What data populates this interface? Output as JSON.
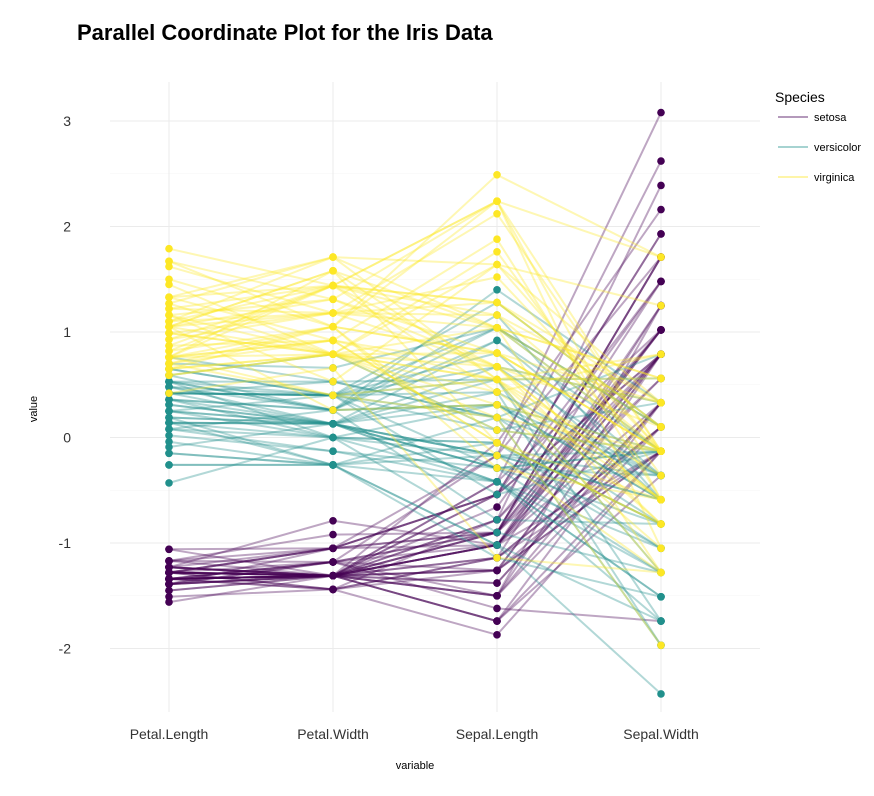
{
  "chart_data": {
    "type": "line",
    "title": "Parallel Coordinate Plot for the Iris Data",
    "xlabel": "variable",
    "ylabel": "value",
    "categories": [
      "Petal.Length",
      "Petal.Width",
      "Sepal.Length",
      "Sepal.Width"
    ],
    "ylim": [
      -2.7,
      3.3
    ],
    "yticks": [
      3,
      2,
      1,
      0,
      -1,
      -2
    ],
    "ytick_labels": [
      "3",
      "2",
      "1",
      "0",
      "-1",
      "-2"
    ],
    "grid": true,
    "legend": {
      "title": "Species",
      "position": "right",
      "entries": [
        "setosa",
        "versicolor",
        "virginica"
      ]
    },
    "series": [
      {
        "name": "setosa",
        "color": "#440154",
        "lines": [
          [
            -1.34,
            -1.31,
            -0.9,
            1.02
          ],
          [
            -1.34,
            -1.31,
            -1.14,
            -0.13
          ],
          [
            -1.39,
            -1.31,
            -1.38,
            0.33
          ],
          [
            -1.28,
            -1.31,
            -1.5,
            0.1
          ],
          [
            -1.34,
            -1.31,
            -1.02,
            1.25
          ],
          [
            -1.17,
            -1.05,
            -0.54,
            1.93
          ],
          [
            -1.34,
            -1.18,
            -1.5,
            0.79
          ],
          [
            -1.28,
            -1.31,
            -1.02,
            0.79
          ],
          [
            -1.34,
            -1.31,
            -1.74,
            -0.36
          ],
          [
            -1.28,
            -1.44,
            -1.14,
            0.1
          ],
          [
            -1.28,
            -1.31,
            -0.54,
            1.48
          ],
          [
            -1.23,
            -1.31,
            -1.26,
            0.79
          ],
          [
            -1.34,
            -1.44,
            -1.26,
            -0.13
          ],
          [
            -1.51,
            -1.44,
            -1.87,
            -0.13
          ],
          [
            -1.45,
            -1.31,
            -0.05,
            2.16
          ],
          [
            -1.28,
            -1.05,
            -0.17,
            3.08
          ],
          [
            -1.39,
            -1.05,
            -0.54,
            1.93
          ],
          [
            -1.34,
            -1.18,
            -0.9,
            1.02
          ],
          [
            -1.17,
            -1.18,
            -0.17,
            1.71
          ],
          [
            -1.28,
            -1.18,
            -0.9,
            1.71
          ],
          [
            -1.17,
            -1.31,
            -0.54,
            0.79
          ],
          [
            -1.28,
            -1.05,
            -0.9,
            1.48
          ],
          [
            -1.56,
            -1.31,
            -1.5,
            1.25
          ],
          [
            -1.17,
            -0.92,
            -0.9,
            0.56
          ],
          [
            -1.06,
            -1.31,
            -1.26,
            0.79
          ],
          [
            -1.23,
            -1.31,
            -1.02,
            -0.13
          ],
          [
            -1.23,
            -1.05,
            -1.02,
            0.79
          ],
          [
            -1.28,
            -1.31,
            -0.78,
            1.02
          ],
          [
            -1.34,
            -1.31,
            -0.78,
            0.79
          ],
          [
            -1.23,
            -1.31,
            -1.38,
            0.33
          ],
          [
            -1.23,
            -1.31,
            -1.26,
            0.1
          ],
          [
            -1.28,
            -1.05,
            -0.54,
            0.79
          ],
          [
            -1.28,
            -1.44,
            -0.78,
            2.39
          ],
          [
            -1.34,
            -1.31,
            -0.42,
            2.62
          ],
          [
            -1.28,
            -1.31,
            -1.14,
            0.1
          ],
          [
            -1.45,
            -1.31,
            -1.02,
            0.33
          ],
          [
            -1.39,
            -1.31,
            -0.42,
            1.02
          ],
          [
            -1.34,
            -1.44,
            -1.14,
            1.25
          ],
          [
            -1.39,
            -1.31,
            -1.74,
            -0.13
          ],
          [
            -1.28,
            -1.31,
            -0.9,
            0.79
          ],
          [
            -1.39,
            -1.18,
            -1.02,
            1.02
          ],
          [
            -1.39,
            -1.18,
            -1.62,
            -1.74
          ],
          [
            -1.39,
            -1.31,
            -1.74,
            0.33
          ],
          [
            -1.23,
            -0.79,
            -1.02,
            1.02
          ],
          [
            -1.06,
            -1.05,
            -0.9,
            1.71
          ],
          [
            -1.34,
            -1.18,
            -1.26,
            -0.13
          ],
          [
            -1.23,
            -1.31,
            -0.9,
            1.71
          ],
          [
            -1.34,
            -1.31,
            -1.5,
            0.33
          ],
          [
            -1.28,
            -1.31,
            -0.66,
            1.48
          ],
          [
            -1.34,
            -1.31,
            -1.02,
            0.56
          ]
        ]
      },
      {
        "name": "versicolor",
        "color": "#21908C",
        "lines": [
          [
            0.53,
            0.26,
            1.4,
            0.33
          ],
          [
            0.42,
            0.4,
            0.67,
            0.33
          ],
          [
            0.65,
            0.4,
            1.28,
            0.1
          ],
          [
            0.14,
            0.13,
            -0.42,
            -1.74
          ],
          [
            0.48,
            0.4,
            0.8,
            -0.59
          ],
          [
            0.42,
            0.13,
            -0.17,
            -0.59
          ],
          [
            0.53,
            0.53,
            0.55,
            0.56
          ],
          [
            -0.26,
            -0.26,
            -1.14,
            -1.51
          ],
          [
            0.48,
            0.13,
            0.92,
            -0.36
          ],
          [
            0.08,
            0.26,
            -0.78,
            -0.82
          ],
          [
            -0.15,
            -0.26,
            -1.02,
            -2.43
          ],
          [
            0.25,
            0.4,
            0.07,
            -0.13
          ],
          [
            0.14,
            -0.26,
            0.19,
            -1.97
          ],
          [
            0.53,
            0.26,
            0.31,
            -0.36
          ],
          [
            -0.09,
            0.13,
            -0.29,
            -0.36
          ],
          [
            0.36,
            0.26,
            1.04,
            0.1
          ],
          [
            0.42,
            0.4,
            -0.29,
            -0.13
          ],
          [
            0.19,
            -0.26,
            -0.05,
            -0.82
          ],
          [
            0.42,
            0.4,
            0.43,
            -1.97
          ],
          [
            0.08,
            -0.13,
            -0.29,
            -1.28
          ],
          [
            0.59,
            0.79,
            0.07,
            0.33
          ],
          [
            0.14,
            0.13,
            0.31,
            -0.59
          ],
          [
            0.65,
            0.4,
            0.55,
            -1.28
          ],
          [
            0.53,
            0.0,
            0.31,
            -0.59
          ],
          [
            0.31,
            0.13,
            0.67,
            -0.36
          ],
          [
            0.36,
            0.26,
            0.92,
            -0.13
          ],
          [
            0.59,
            0.26,
            1.16,
            -0.59
          ],
          [
            0.7,
            0.66,
            1.04,
            -0.13
          ],
          [
            0.42,
            0.4,
            0.19,
            -0.36
          ],
          [
            -0.15,
            -0.26,
            -0.17,
            -1.05
          ],
          [
            0.02,
            -0.13,
            -0.42,
            -1.51
          ],
          [
            -0.04,
            -0.26,
            -0.42,
            -1.51
          ],
          [
            0.08,
            0.0,
            -0.05,
            -0.82
          ],
          [
            0.76,
            0.53,
            0.19,
            -0.82
          ],
          [
            0.42,
            0.4,
            -0.54,
            -0.13
          ],
          [
            0.42,
            0.53,
            0.19,
            0.79
          ],
          [
            0.53,
            0.4,
            1.04,
            0.1
          ],
          [
            0.36,
            0.13,
            0.55,
            -1.74
          ],
          [
            0.19,
            0.13,
            -0.29,
            -0.13
          ],
          [
            0.14,
            0.13,
            -0.42,
            -1.28
          ],
          [
            0.36,
            0.0,
            -0.42,
            -1.05
          ],
          [
            0.48,
            0.26,
            0.31,
            -0.13
          ],
          [
            0.14,
            0.0,
            -0.05,
            -1.05
          ],
          [
            -0.26,
            -0.26,
            -1.02,
            -1.74
          ],
          [
            0.25,
            0.13,
            -0.29,
            -0.82
          ],
          [
            0.25,
            0.0,
            -0.17,
            -0.13
          ],
          [
            0.25,
            0.13,
            -0.17,
            -0.36
          ],
          [
            0.31,
            0.13,
            0.43,
            -0.36
          ],
          [
            -0.43,
            0.0,
            -0.9,
            -1.28
          ],
          [
            0.19,
            0.13,
            -0.17,
            -0.59
          ]
        ]
      },
      {
        "name": "virginica",
        "color": "#FDE725",
        "lines": [
          [
            1.27,
            1.71,
            0.55,
            0.56
          ],
          [
            0.76,
            0.92,
            -0.05,
            -0.82
          ],
          [
            1.22,
            1.18,
            1.52,
            -0.13
          ],
          [
            1.05,
            0.79,
            0.55,
            -0.36
          ],
          [
            1.16,
            1.31,
            0.8,
            -0.13
          ],
          [
            1.62,
            1.18,
            2.12,
            -0.13
          ],
          [
            0.42,
            0.66,
            -1.14,
            -1.28
          ],
          [
            1.45,
            0.79,
            1.76,
            -0.36
          ],
          [
            1.16,
            0.79,
            1.04,
            -1.28
          ],
          [
            1.33,
            1.71,
            1.64,
            1.25
          ],
          [
            0.76,
            1.05,
            0.8,
            0.33
          ],
          [
            0.87,
            0.92,
            0.67,
            -0.82
          ],
          [
            0.99,
            1.18,
            1.16,
            -0.13
          ],
          [
            0.7,
            1.05,
            -0.17,
            -1.28
          ],
          [
            0.76,
            1.58,
            -0.05,
            -0.59
          ],
          [
            0.87,
            1.44,
            0.67,
            0.33
          ],
          [
            0.99,
            0.79,
            0.8,
            -0.13
          ],
          [
            1.67,
            1.31,
            2.24,
            1.71
          ],
          [
            1.79,
            1.44,
            2.24,
            -1.05
          ],
          [
            0.7,
            0.4,
            0.19,
            -1.97
          ],
          [
            1.1,
            1.44,
            1.28,
            0.33
          ],
          [
            0.65,
            1.05,
            -0.29,
            -0.59
          ],
          [
            1.67,
            1.05,
            2.24,
            -0.59
          ],
          [
            0.65,
            0.79,
            0.55,
            -0.82
          ],
          [
            1.1,
            1.18,
            1.04,
            0.56
          ],
          [
            1.27,
            0.79,
            1.64,
            0.33
          ],
          [
            0.59,
            0.79,
            0.43,
            -0.59
          ],
          [
            0.65,
            0.79,
            0.31,
            -0.13
          ],
          [
            1.05,
            1.18,
            0.67,
            -0.59
          ],
          [
            1.16,
            0.53,
            1.64,
            -0.13
          ],
          [
            1.33,
            0.92,
            1.88,
            -0.59
          ],
          [
            1.5,
            1.05,
            2.49,
            1.71
          ],
          [
            1.05,
            1.31,
            0.67,
            -0.59
          ],
          [
            0.76,
            0.4,
            0.55,
            -0.59
          ],
          [
            1.05,
            0.26,
            0.31,
            -1.05
          ],
          [
            1.33,
            1.44,
            2.24,
            -0.13
          ],
          [
            1.05,
            1.58,
            0.55,
            0.79
          ],
          [
            0.99,
            0.79,
            0.67,
            0.1
          ],
          [
            0.59,
            0.79,
            0.19,
            -0.13
          ],
          [
            0.93,
            1.18,
            1.28,
            0.1
          ],
          [
            1.05,
            1.58,
            1.04,
            0.1
          ],
          [
            0.76,
            1.44,
            1.28,
            0.1
          ],
          [
            0.76,
            0.92,
            -0.05,
            -0.82
          ],
          [
            1.22,
            1.44,
            1.16,
            0.33
          ],
          [
            1.1,
            1.71,
            1.04,
            0.56
          ],
          [
            0.82,
            1.44,
            1.04,
            -0.13
          ],
          [
            0.7,
            0.92,
            0.55,
            -1.28
          ],
          [
            0.82,
            1.05,
            0.8,
            -0.13
          ],
          [
            0.93,
            1.44,
            0.43,
            0.79
          ],
          [
            0.76,
            0.79,
            0.07,
            -0.13
          ]
        ]
      }
    ]
  }
}
